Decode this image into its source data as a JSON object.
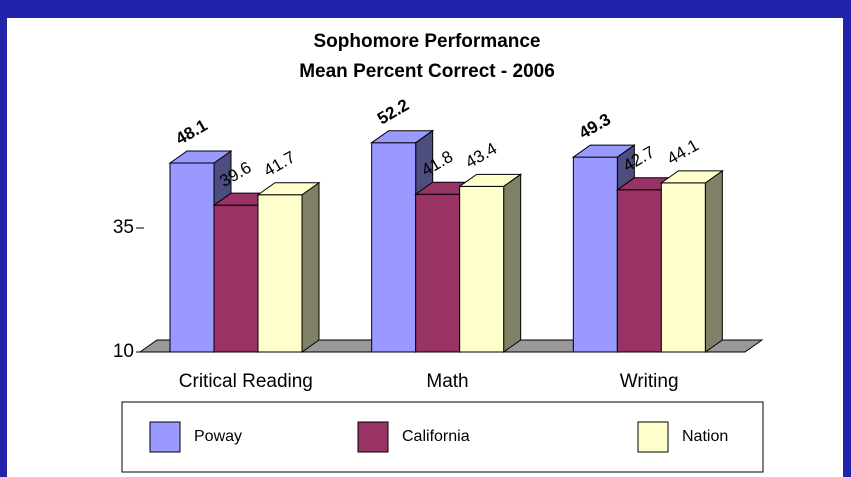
{
  "chart_data": {
    "type": "bar3d",
    "title": "Sophomore Performance",
    "subtitle": "Mean Percent Correct - 2006",
    "categories": [
      "Critical Reading",
      "Math",
      "Writing"
    ],
    "series": [
      {
        "name": "Poway",
        "color": "#9999ff",
        "side": "#4d4d80",
        "values": [
          48.1,
          52.2,
          49.3
        ]
      },
      {
        "name": "California",
        "color": "#993366",
        "side": "#4d1a33",
        "values": [
          39.6,
          41.8,
          42.7
        ]
      },
      {
        "name": "Nation",
        "color": "#ffffcc",
        "side": "#808066",
        "values": [
          41.7,
          43.4,
          44.1
        ]
      }
    ],
    "ylim": [
      10,
      60
    ],
    "yticks": [
      10,
      35
    ]
  }
}
